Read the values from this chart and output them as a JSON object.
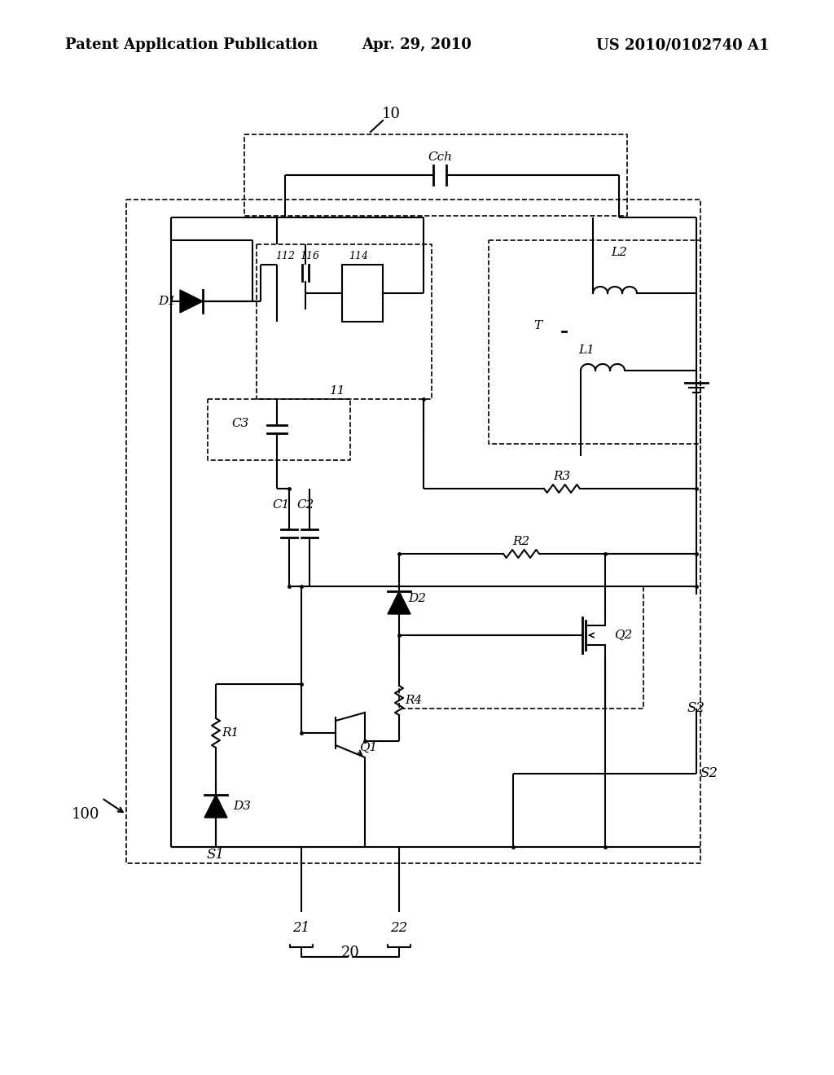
{
  "background_color": "#ffffff",
  "header_left": "Patent Application Publication",
  "header_center": "Apr. 29, 2010",
  "header_right": "US 2010/0102740 A1",
  "header_fontsize": 13,
  "label_fontsize": 12,
  "component_fontsize": 11
}
